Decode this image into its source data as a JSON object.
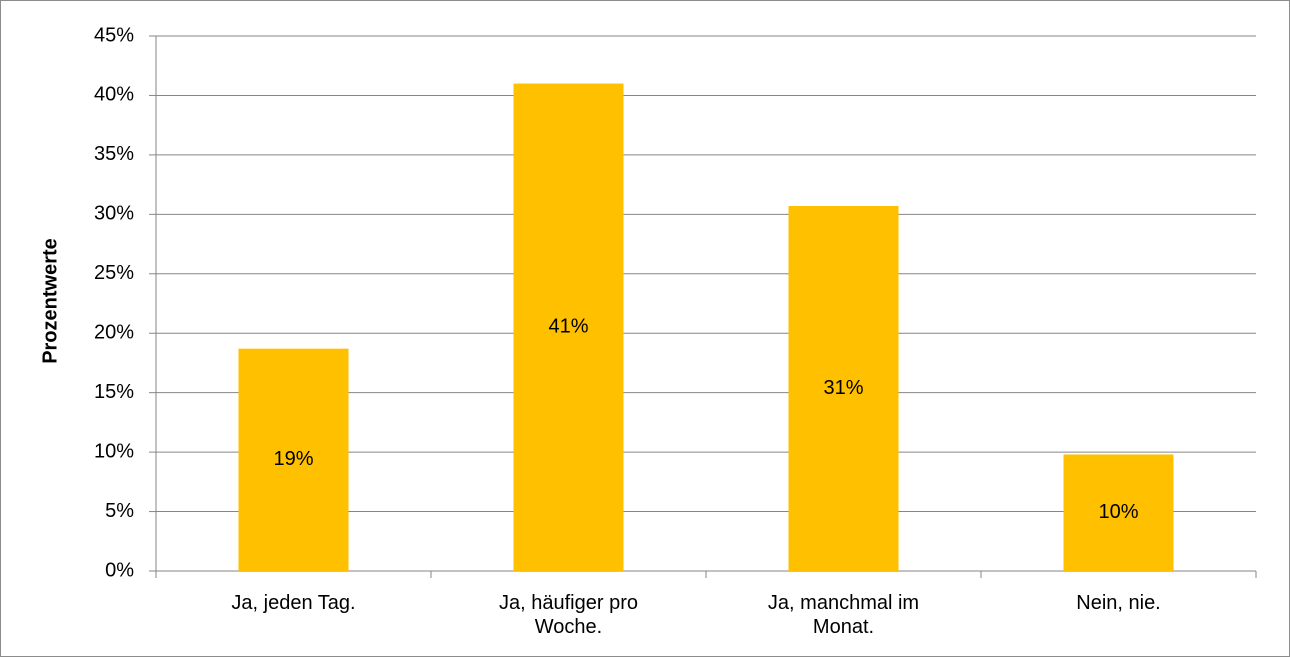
{
  "chart_data": {
    "type": "bar",
    "y_axis_label": "Prozentwerte",
    "categories": [
      "Ja, jeden Tag.",
      "Ja, häufiger pro Woche.",
      "Ja, manchmal im Monat.",
      "Nein, nie."
    ],
    "values": [
      18.7,
      41,
      30.7,
      9.8
    ],
    "value_labels": [
      "19%",
      "41%",
      "31%",
      "10%"
    ],
    "color": "#ffc000",
    "ylim": [
      0,
      45
    ],
    "yticks": [
      {
        "value": 0,
        "label": "0%"
      },
      {
        "value": 5,
        "label": "5%"
      },
      {
        "value": 10,
        "label": "10%"
      },
      {
        "value": 15,
        "label": "15%"
      },
      {
        "value": 20,
        "label": "20%"
      },
      {
        "value": 25,
        "label": "25%"
      },
      {
        "value": 30,
        "label": "30%"
      },
      {
        "value": 35,
        "label": "35%"
      },
      {
        "value": 40,
        "label": "40%"
      },
      {
        "value": 45,
        "label": "45%"
      }
    ],
    "grid": true
  }
}
